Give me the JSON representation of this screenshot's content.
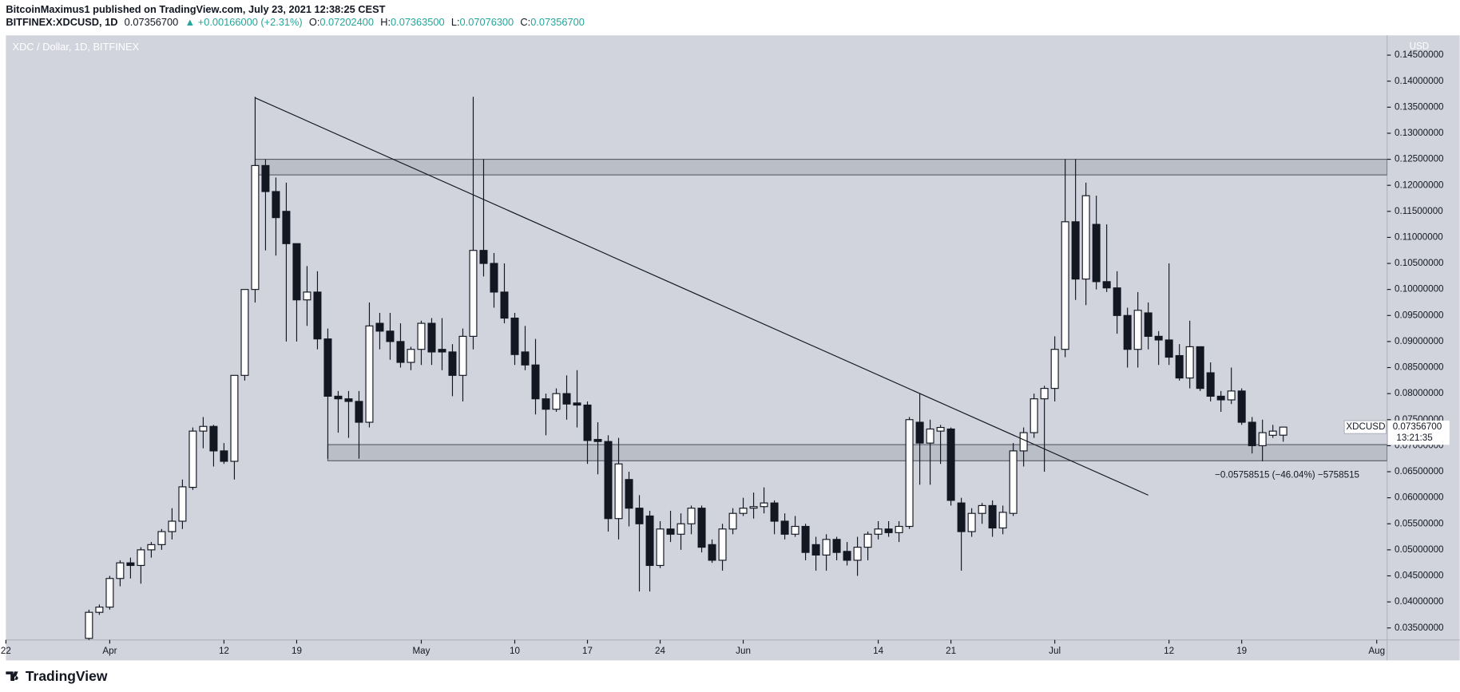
{
  "header": {
    "line1": "BitcoinMaximus1 published on TradingView.com, July 23, 2021 12:38:25 CEST",
    "symbol": "BITFINEX:XDCUSD, 1D",
    "last": "0.07356700",
    "change": "▲ +0.00166000 (+2.31%)",
    "o_label": "O:",
    "o": "0.07202400",
    "h_label": "H:",
    "h": "0.07363500",
    "l_label": "L:",
    "l": "0.07076300",
    "c_label": "C:",
    "c": "0.07356700"
  },
  "footer": {
    "brand": "TradingView"
  },
  "chart_data": {
    "type": "candlestick",
    "title": "XDC / Dollar, 1D, BITFINEX",
    "y_axis_unit": "USD",
    "grid": false,
    "xlim": [
      "2021-03-22",
      "2021-08-02"
    ],
    "xticks": [
      {
        "value": "2021-03-22",
        "label": "22"
      },
      {
        "value": "2021-04-01",
        "label": "Apr"
      },
      {
        "value": "2021-04-12",
        "label": "12"
      },
      {
        "value": "2021-04-19",
        "label": "19"
      },
      {
        "value": "2021-05-01",
        "label": "May"
      },
      {
        "value": "2021-05-10",
        "label": "10"
      },
      {
        "value": "2021-05-17",
        "label": "17"
      },
      {
        "value": "2021-05-24",
        "label": "24"
      },
      {
        "value": "2021-06-01",
        "label": "Jun"
      },
      {
        "value": "2021-06-14",
        "label": "14"
      },
      {
        "value": "2021-06-21",
        "label": "21"
      },
      {
        "value": "2021-07-01",
        "label": "Jul"
      },
      {
        "value": "2021-07-12",
        "label": "12"
      },
      {
        "value": "2021-07-19",
        "label": "19"
      },
      {
        "value": "2021-08-01",
        "label": "Aug"
      }
    ],
    "ylim": [
      0.0327,
      0.1488
    ],
    "yticks": [
      {
        "value": 0.035,
        "label": "0.03500000"
      },
      {
        "value": 0.04,
        "label": "0.04000000"
      },
      {
        "value": 0.045,
        "label": "0.04500000"
      },
      {
        "value": 0.05,
        "label": "0.05000000"
      },
      {
        "value": 0.055,
        "label": "0.05500000"
      },
      {
        "value": 0.06,
        "label": "0.06000000"
      },
      {
        "value": 0.065,
        "label": "0.06500000"
      },
      {
        "value": 0.07,
        "label": "0.07000000"
      },
      {
        "value": 0.075,
        "label": "0.07500000"
      },
      {
        "value": 0.08,
        "label": "0.08000000"
      },
      {
        "value": 0.085,
        "label": "0.08500000"
      },
      {
        "value": 0.09,
        "label": "0.09000000"
      },
      {
        "value": 0.095,
        "label": "0.09500000"
      },
      {
        "value": 0.1,
        "label": "0.10000000"
      },
      {
        "value": 0.105,
        "label": "0.10500000"
      },
      {
        "value": 0.11,
        "label": "0.11000000"
      },
      {
        "value": 0.115,
        "label": "0.11500000"
      },
      {
        "value": 0.12,
        "label": "0.12000000"
      },
      {
        "value": 0.125,
        "label": "0.12500000"
      },
      {
        "value": 0.13,
        "label": "0.13000000"
      },
      {
        "value": 0.135,
        "label": "0.13500000"
      },
      {
        "value": 0.14,
        "label": "0.14000000"
      },
      {
        "value": 0.145,
        "label": "0.14500000"
      }
    ],
    "x": [
      "2021-03-30",
      "2021-03-31",
      "2021-04-01",
      "2021-04-02",
      "2021-04-03",
      "2021-04-04",
      "2021-04-05",
      "2021-04-06",
      "2021-04-07",
      "2021-04-08",
      "2021-04-09",
      "2021-04-10",
      "2021-04-11",
      "2021-04-12",
      "2021-04-13",
      "2021-04-14",
      "2021-04-15",
      "2021-04-16",
      "2021-04-17",
      "2021-04-18",
      "2021-04-19",
      "2021-04-20",
      "2021-04-21",
      "2021-04-22",
      "2021-04-23",
      "2021-04-24",
      "2021-04-25",
      "2021-04-26",
      "2021-04-27",
      "2021-04-28",
      "2021-04-29",
      "2021-04-30",
      "2021-05-01",
      "2021-05-02",
      "2021-05-03",
      "2021-05-04",
      "2021-05-05",
      "2021-05-06",
      "2021-05-07",
      "2021-05-08",
      "2021-05-09",
      "2021-05-10",
      "2021-05-11",
      "2021-05-12",
      "2021-05-13",
      "2021-05-14",
      "2021-05-15",
      "2021-05-16",
      "2021-05-17",
      "2021-05-18",
      "2021-05-19",
      "2021-05-20",
      "2021-05-21",
      "2021-05-22",
      "2021-05-23",
      "2021-05-24",
      "2021-05-25",
      "2021-05-26",
      "2021-05-27",
      "2021-05-28",
      "2021-05-29",
      "2021-05-30",
      "2021-05-31",
      "2021-06-01",
      "2021-06-02",
      "2021-06-03",
      "2021-06-04",
      "2021-06-05",
      "2021-06-06",
      "2021-06-07",
      "2021-06-08",
      "2021-06-09",
      "2021-06-10",
      "2021-06-11",
      "2021-06-12",
      "2021-06-13",
      "2021-06-14",
      "2021-06-15",
      "2021-06-16",
      "2021-06-17",
      "2021-06-18",
      "2021-06-19",
      "2021-06-20",
      "2021-06-21",
      "2021-06-22",
      "2021-06-23",
      "2021-06-24",
      "2021-06-25",
      "2021-06-26",
      "2021-06-27",
      "2021-06-28",
      "2021-06-29",
      "2021-06-30",
      "2021-07-01",
      "2021-07-02",
      "2021-07-03",
      "2021-07-04",
      "2021-07-05",
      "2021-07-06",
      "2021-07-07",
      "2021-07-08",
      "2021-07-09",
      "2021-07-10",
      "2021-07-11",
      "2021-07-12",
      "2021-07-13",
      "2021-07-14",
      "2021-07-15",
      "2021-07-16",
      "2021-07-17",
      "2021-07-18",
      "2021-07-19",
      "2021-07-20",
      "2021-07-21",
      "2021-07-22",
      "2021-07-23"
    ],
    "series": [
      {
        "name": "XDCUSD",
        "up_color": "#ffffff",
        "down_color": "#131722",
        "wick_color": "#131722",
        "open": [
          0.033,
          0.038,
          0.039,
          0.0445,
          0.0475,
          0.047,
          0.05,
          0.051,
          0.0535,
          0.0555,
          0.062,
          0.0728,
          0.0737,
          0.069,
          0.067,
          0.0835,
          0.1,
          0.1238,
          0.1188,
          0.115,
          0.1088,
          0.098,
          0.0995,
          0.0905,
          0.0795,
          0.079,
          0.0785,
          0.0745,
          0.0935,
          0.092,
          0.09,
          0.086,
          0.0885,
          0.0935,
          0.0885,
          0.088,
          0.0835,
          0.091,
          0.1075,
          0.105,
          0.0995,
          0.0945,
          0.088,
          0.0855,
          0.079,
          0.077,
          0.08,
          0.0782,
          0.0778,
          0.0712,
          0.0708,
          0.056,
          0.0635,
          0.058,
          0.0565,
          0.047,
          0.054,
          0.053,
          0.055,
          0.058,
          0.051,
          0.048,
          0.054,
          0.057,
          0.058,
          0.0583,
          0.059,
          0.0555,
          0.053,
          0.0545,
          0.051,
          0.049,
          0.052,
          0.0497,
          0.048,
          0.0505,
          0.053,
          0.054,
          0.0533,
          0.0545,
          0.0745,
          0.0705,
          0.0728,
          0.0732,
          0.059,
          0.0535,
          0.057,
          0.0585,
          0.0542,
          0.057,
          0.069,
          0.0725,
          0.079,
          0.081,
          0.0885,
          0.113,
          0.102,
          0.1125,
          0.1015,
          0.1003,
          0.095,
          0.0885,
          0.0955,
          0.091,
          0.0903,
          0.0873,
          0.083,
          0.089,
          0.084,
          0.0795,
          0.0788,
          0.0805,
          0.0745,
          0.07,
          0.072,
          0.07202
        ],
        "high": [
          0.0385,
          0.0395,
          0.045,
          0.048,
          0.0485,
          0.0505,
          0.0515,
          0.054,
          0.058,
          0.0635,
          0.0735,
          0.0755,
          0.074,
          0.0705,
          0.0835,
          0.1,
          0.137,
          0.125,
          0.1215,
          0.1205,
          0.1088,
          0.1045,
          0.1035,
          0.0925,
          0.0805,
          0.0805,
          0.0805,
          0.0975,
          0.0955,
          0.0955,
          0.0935,
          0.089,
          0.094,
          0.0945,
          0.0945,
          0.0895,
          0.0925,
          0.137,
          0.125,
          0.107,
          0.105,
          0.0955,
          0.093,
          0.0905,
          0.08,
          0.081,
          0.0835,
          0.0845,
          0.0785,
          0.0745,
          0.072,
          0.0715,
          0.065,
          0.0605,
          0.0575,
          0.0555,
          0.0575,
          0.057,
          0.0585,
          0.0585,
          0.052,
          0.055,
          0.058,
          0.06,
          0.061,
          0.062,
          0.0595,
          0.057,
          0.0565,
          0.055,
          0.0525,
          0.053,
          0.0525,
          0.0515,
          0.0525,
          0.0535,
          0.0555,
          0.0555,
          0.0555,
          0.0755,
          0.08,
          0.075,
          0.074,
          0.0735,
          0.06,
          0.058,
          0.059,
          0.0595,
          0.0585,
          0.0705,
          0.0735,
          0.08,
          0.0815,
          0.091,
          0.125,
          0.125,
          0.1205,
          0.118,
          0.1125,
          0.1035,
          0.0965,
          0.0995,
          0.0975,
          0.092,
          0.105,
          0.0895,
          0.094,
          0.089,
          0.086,
          0.0805,
          0.085,
          0.081,
          0.0755,
          0.075,
          0.074,
          0.073635
        ],
        "low": [
          0.032,
          0.0375,
          0.0385,
          0.043,
          0.0445,
          0.0435,
          0.0485,
          0.05,
          0.052,
          0.054,
          0.0615,
          0.0695,
          0.066,
          0.0665,
          0.0635,
          0.0825,
          0.0975,
          0.1075,
          0.1065,
          0.09,
          0.09,
          0.093,
          0.0885,
          0.0675,
          0.0725,
          0.0715,
          0.0675,
          0.0735,
          0.0885,
          0.0865,
          0.085,
          0.0845,
          0.0855,
          0.0855,
          0.0845,
          0.0795,
          0.0785,
          0.0885,
          0.1025,
          0.0965,
          0.0935,
          0.0855,
          0.0845,
          0.076,
          0.072,
          0.0765,
          0.075,
          0.0735,
          0.0665,
          0.0645,
          0.0535,
          0.052,
          0.0545,
          0.042,
          0.042,
          0.0465,
          0.0515,
          0.05,
          0.053,
          0.0495,
          0.0475,
          0.046,
          0.053,
          0.0565,
          0.056,
          0.057,
          0.053,
          0.052,
          0.0525,
          0.048,
          0.046,
          0.046,
          0.048,
          0.047,
          0.045,
          0.048,
          0.052,
          0.0525,
          0.0515,
          0.054,
          0.0625,
          0.0625,
          0.0665,
          0.0585,
          0.046,
          0.0525,
          0.055,
          0.0525,
          0.053,
          0.0565,
          0.066,
          0.0715,
          0.065,
          0.0785,
          0.087,
          0.098,
          0.097,
          0.1,
          0.0995,
          0.0915,
          0.085,
          0.085,
          0.0885,
          0.0855,
          0.0855,
          0.0825,
          0.081,
          0.0805,
          0.0785,
          0.0765,
          0.078,
          0.074,
          0.0685,
          0.067,
          0.0715,
          0.070763
        ],
        "close": [
          0.038,
          0.039,
          0.0445,
          0.0475,
          0.047,
          0.05,
          0.051,
          0.0535,
          0.0555,
          0.0621,
          0.0728,
          0.0737,
          0.069,
          0.067,
          0.0835,
          0.1,
          0.1238,
          0.1188,
          0.1138,
          0.1088,
          0.098,
          0.0995,
          0.0905,
          0.0795,
          0.079,
          0.0785,
          0.0745,
          0.093,
          0.092,
          0.09,
          0.086,
          0.0885,
          0.0935,
          0.088,
          0.088,
          0.0835,
          0.091,
          0.1075,
          0.105,
          0.0995,
          0.0945,
          0.0875,
          0.0855,
          0.079,
          0.077,
          0.08,
          0.078,
          0.0778,
          0.071,
          0.0708,
          0.056,
          0.0665,
          0.058,
          0.055,
          0.047,
          0.054,
          0.053,
          0.055,
          0.058,
          0.0505,
          0.048,
          0.054,
          0.057,
          0.058,
          0.0583,
          0.059,
          0.0555,
          0.053,
          0.0545,
          0.0495,
          0.049,
          0.052,
          0.0495,
          0.048,
          0.0505,
          0.053,
          0.054,
          0.0533,
          0.0545,
          0.075,
          0.0705,
          0.0732,
          0.0735,
          0.0595,
          0.0535,
          0.057,
          0.0585,
          0.0542,
          0.0572,
          0.069,
          0.0725,
          0.079,
          0.081,
          0.0885,
          0.113,
          0.102,
          0.118,
          0.1015,
          0.1003,
          0.095,
          0.0885,
          0.096,
          0.091,
          0.0903,
          0.087,
          0.083,
          0.089,
          0.081,
          0.0795,
          0.0788,
          0.0805,
          0.0745,
          0.07,
          0.0725,
          0.0728,
          0.073567
        ]
      }
    ],
    "trendline": {
      "x": [
        "2021-04-15",
        "2021-07-10"
      ],
      "y": [
        0.1368,
        0.0605
      ],
      "color": "#131722"
    },
    "zones": [
      {
        "from": "2021-04-15",
        "low": 0.122,
        "high": 0.125
      },
      {
        "from": "2021-04-22",
        "low": 0.0671,
        "high": 0.0702
      }
    ],
    "measure_label": "−0.05758515 (−46.04%) −5758515",
    "last_price": {
      "symbol": "XDCUSD",
      "value": 0.073567,
      "label": "0.07356700",
      "countdown": "13:21:35"
    }
  }
}
